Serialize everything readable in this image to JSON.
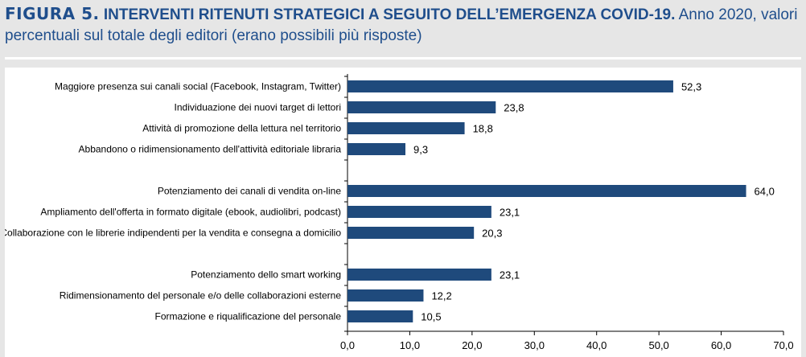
{
  "title": {
    "figure_label": "FIGURA 5.",
    "main": "INTERVENTI RITENUTI STRATEGICI A SEGUITO DELL’EMERGENZA COVID-19.",
    "rest": "Anno 2020, valori percentuali sul totale degli editori (erano possibili più risposte)"
  },
  "colors": {
    "title": "#1f4e8c",
    "bar": "#1f4a7c",
    "background": "#e6e6e6",
    "plot_background": "#ffffff"
  },
  "chart_data": {
    "type": "bar",
    "orientation": "horizontal",
    "title": "",
    "xlabel": "",
    "ylabel": "",
    "xlim": [
      0,
      70
    ],
    "x_ticks": [
      "0,0",
      "10,0",
      "20,0",
      "30,0",
      "40,0",
      "50,0",
      "60,0",
      "70,0"
    ],
    "grid": false,
    "categories": [
      "Maggiore presenza sui canali social (Facebook, Instagram, Twitter)",
      "Individuazione dei nuovi target di lettori",
      "Attività di promozione della lettura nel territorio",
      "Abbandono o ridimensionamento dell'attività editoriale libraria",
      "",
      "Potenziamento dei canali di vendita on-line",
      "Ampliamento dell'offerta in formato digitale (ebook, audiolibri, podcast)",
      "Collaborazione con le librerie indipendenti per la vendita e consegna a domicilio",
      "",
      "Potenziamento dello smart working",
      "Ridimensionamento del personale e/o delle collaborazioni esterne",
      "Formazione e riqualificazione del personale"
    ],
    "values": [
      52.3,
      23.8,
      18.8,
      9.3,
      null,
      64.0,
      23.1,
      20.3,
      null,
      23.1,
      12.2,
      10.5
    ],
    "value_labels": [
      "52,3",
      "23,8",
      "18,8",
      "9,3",
      "",
      "64,0",
      "23,1",
      "20,3",
      "",
      "23,1",
      "12,2",
      "10,5"
    ]
  }
}
